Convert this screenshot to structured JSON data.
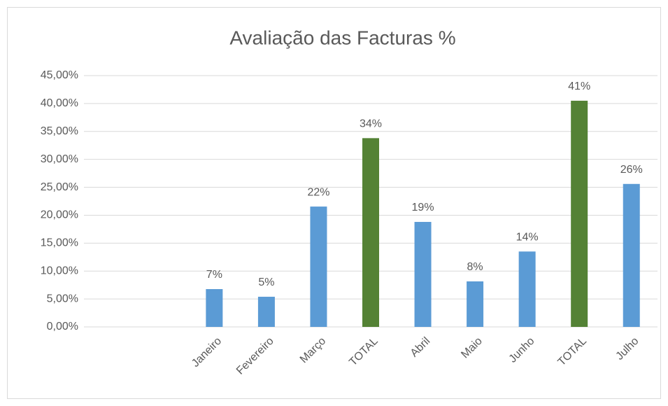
{
  "chart_data": {
    "type": "bar",
    "title": "Avaliação das Facturas %",
    "categories": [
      null,
      null,
      "Janeiro",
      "Fevereiro",
      "Março",
      "TOTAL",
      "Abril",
      "Maio",
      "Junho",
      "TOTAL",
      "Julho"
    ],
    "values": [
      null,
      null,
      6.77,
      5.4,
      21.55,
      33.8,
      18.8,
      8.15,
      13.5,
      40.5,
      25.6
    ],
    "value_labels": [
      null,
      null,
      "7%",
      "5%",
      "22%",
      "34%",
      "19%",
      "8%",
      "14%",
      "41%",
      "26%"
    ],
    "colors": [
      null,
      null,
      "#5b9bd5",
      "#5b9bd5",
      "#5b9bd5",
      "#548235",
      "#5b9bd5",
      "#5b9bd5",
      "#5b9bd5",
      "#548235",
      "#5b9bd5"
    ],
    "ylim": [
      0,
      45
    ],
    "yticks": [
      {
        "value": 0,
        "label": "0,00%"
      },
      {
        "value": 5,
        "label": "5,00%"
      },
      {
        "value": 10,
        "label": "10,00%"
      },
      {
        "value": 15,
        "label": "15,00%"
      },
      {
        "value": 20,
        "label": "20,00%"
      },
      {
        "value": 25,
        "label": "25,00%"
      },
      {
        "value": 30,
        "label": "30,00%"
      },
      {
        "value": 35,
        "label": "35,00%"
      },
      {
        "value": 40,
        "label": "40,00%"
      },
      {
        "value": 45,
        "label": "45,00%"
      }
    ],
    "grid": true
  }
}
